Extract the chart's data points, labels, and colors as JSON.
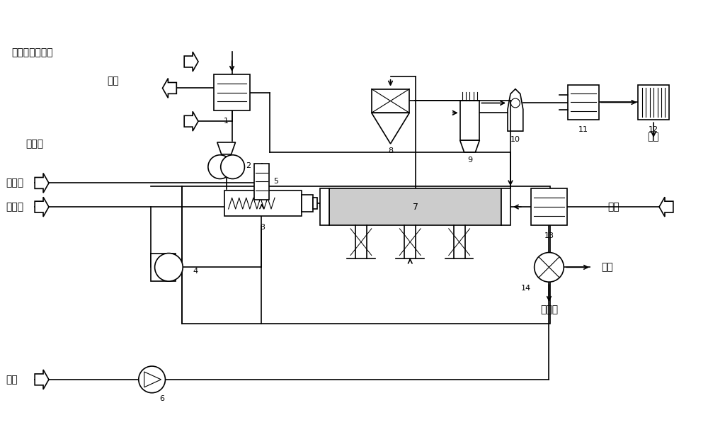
{
  "bg_color": "#ffffff",
  "line_color": "#000000",
  "labels": {
    "gypsum": "工业副产物石膏",
    "vent": "放空",
    "coke": "焦炭粉",
    "steam": "水蒸气",
    "natural_gas": "天然气",
    "air1": "空气",
    "air2": "空气",
    "sulfur": "硫磺",
    "cao": "氧化钙",
    "silica": "硅渣"
  },
  "figsize": [
    10,
    6.1
  ],
  "dpi": 100,
  "lw": 1.2,
  "fs_label": 10,
  "fs_num": 8
}
